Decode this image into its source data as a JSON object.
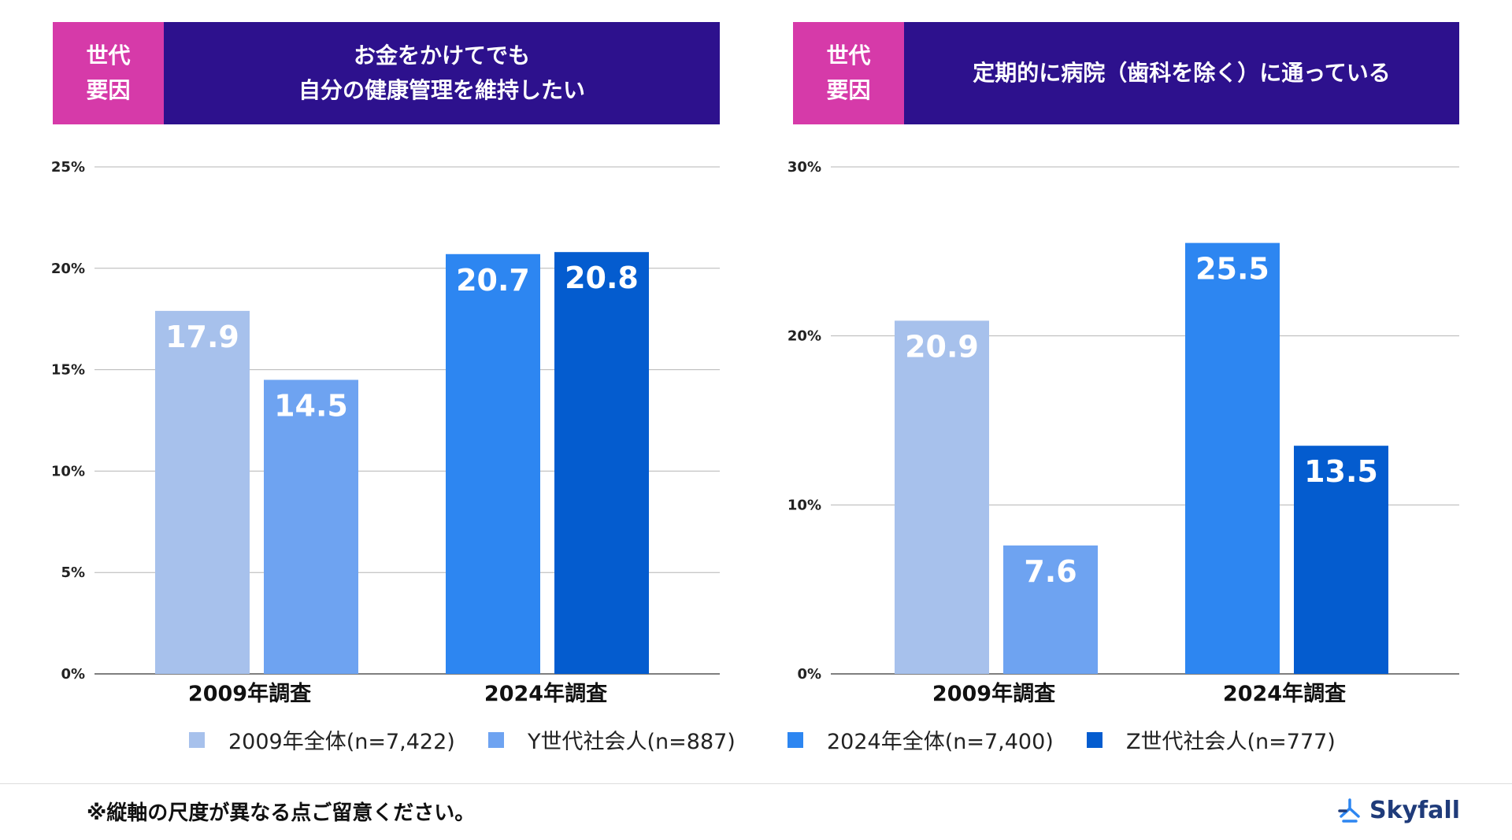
{
  "panels": [
    {
      "tag_lines": [
        "世代",
        "要因"
      ],
      "title_lines": [
        "お金をかけてでも",
        "自分の健康管理を維持したい"
      ]
    },
    {
      "tag_lines": [
        "世代",
        "要因"
      ],
      "title_lines": [
        "定期的に病院（歯科を除く）に通っている"
      ]
    }
  ],
  "chart_data": [
    {
      "type": "bar",
      "title": "お金をかけてでも自分の健康管理を維持したい",
      "categories": [
        "2009年調査",
        "2024年調査"
      ],
      "series": [
        {
          "name": "2009年全体(n=7,422)",
          "values": [
            17.9,
            null
          ]
        },
        {
          "name": "Y世代社会人(n=887)",
          "values": [
            14.5,
            null
          ]
        },
        {
          "name": "2024年全体(n=7,400)",
          "values": [
            null,
            20.7
          ]
        },
        {
          "name": "Z世代社会人(n=777)",
          "values": [
            null,
            20.8
          ]
        }
      ],
      "ylim": [
        0,
        25
      ],
      "yticks": [
        "0%",
        "5%",
        "10%",
        "15%",
        "20%",
        "25%"
      ],
      "ytick_values": [
        0,
        5,
        10,
        15,
        20,
        25
      ],
      "grid": true
    },
    {
      "type": "bar",
      "title": "定期的に病院（歯科を除く）に通っている",
      "categories": [
        "2009年調査",
        "2024年調査"
      ],
      "series": [
        {
          "name": "2009年全体(n=7,422)",
          "values": [
            20.9,
            null
          ]
        },
        {
          "name": "Y世代社会人(n=887)",
          "values": [
            7.6,
            null
          ]
        },
        {
          "name": "2024年全体(n=7,400)",
          "values": [
            null,
            25.5
          ]
        },
        {
          "name": "Z世代社会人(n=777)",
          "values": [
            null,
            13.5
          ]
        }
      ],
      "ylim": [
        0,
        30
      ],
      "yticks": [
        "0%",
        "10%",
        "20%",
        "30%"
      ],
      "ytick_values": [
        0,
        10,
        20,
        30
      ],
      "grid": true
    }
  ],
  "legend": [
    {
      "label": "2009年全体(n=7,422)",
      "color": "#a7c1ec"
    },
    {
      "label": "Y世代社会人(n=887)",
      "color": "#6ea3f1"
    },
    {
      "label": "2024年全体(n=7,400)",
      "color": "#2d86f1"
    },
    {
      "label": "Z世代社会人(n=777)",
      "color": "#045ccf"
    }
  ],
  "footer": {
    "note": "※縦軸の尺度が異なる点ご留意ください。",
    "brand": "Skyfall",
    "brand_icon": "skyfall-logo-icon"
  }
}
